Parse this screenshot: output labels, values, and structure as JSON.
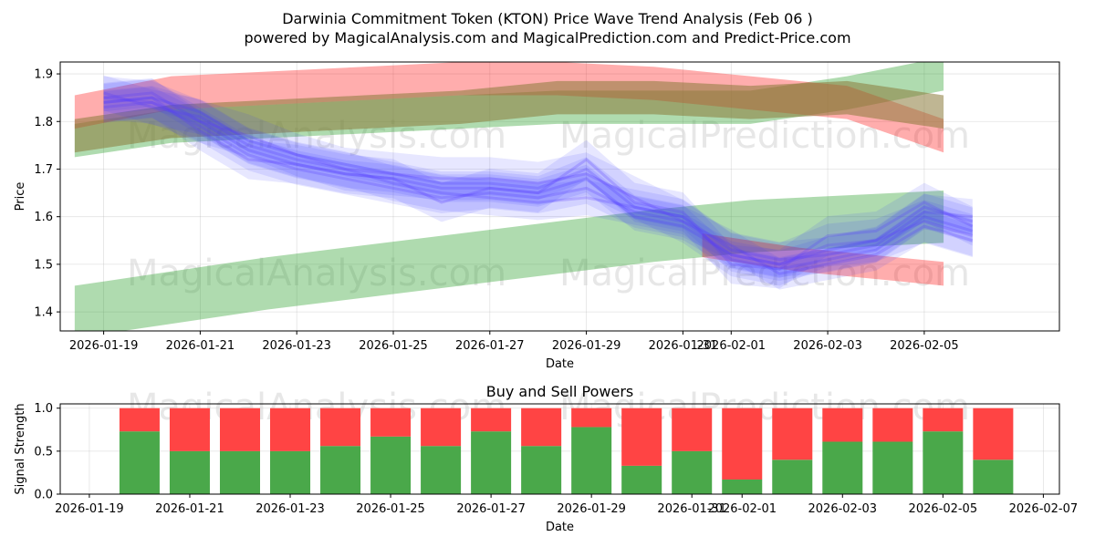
{
  "title": "Darwinia Commitment Token (KTON) Price Wave Trend Analysis (Feb 06 )",
  "subtitle": "powered by MagicalAnalysis.com and MagicalPrediction.com and Predict-Price.com",
  "watermarks": [
    "MagicalAnalysis.com",
    "MagicalPrediction.com"
  ],
  "colors": {
    "green": "#2ca02c",
    "red": "#ff0000",
    "blue": "#0000ff",
    "buy": "#4aa84a",
    "sell": "#ff4444"
  },
  "chart_data": [
    {
      "type": "line",
      "name": "price-wave",
      "title": "",
      "xlabel": "Date",
      "ylabel": "Price",
      "xlim": [
        "2026-01-18.1",
        "2026-02-07.8"
      ],
      "ylim": [
        1.36,
        1.925
      ],
      "yticks": [
        1.4,
        1.5,
        1.6,
        1.7,
        1.8,
        1.9
      ],
      "xticks": [
        "2026-01-19",
        "2026-01-21",
        "2026-01-23",
        "2026-01-25",
        "2026-01-27",
        "2026-01-29",
        "2026-01-31",
        "2026-02-01",
        "2026-02-03",
        "2026-02-05"
      ],
      "bands": [
        {
          "name": "green-upper-channel",
          "color": "green",
          "x": [
            0,
            2,
            4,
            6,
            8,
            10,
            12,
            14,
            16,
            18
          ],
          "center": [
            1.76,
            1.79,
            1.8,
            1.81,
            1.82,
            1.83,
            1.83,
            1.83,
            1.86,
            1.9
          ],
          "width": 0.07
        },
        {
          "name": "red-channel",
          "color": "red",
          "x": [
            0,
            2,
            4,
            6,
            8,
            10,
            12,
            14,
            16,
            18
          ],
          "center": [
            1.82,
            1.86,
            1.87,
            1.88,
            1.89,
            1.89,
            1.88,
            1.86,
            1.84,
            1.77
          ],
          "width": 0.07
        },
        {
          "name": "olive-band",
          "color": "olive",
          "x": [
            0,
            2,
            4,
            6,
            8,
            10,
            12,
            14,
            16,
            18
          ],
          "center": [
            1.77,
            1.8,
            1.81,
            1.82,
            1.83,
            1.85,
            1.85,
            1.84,
            1.85,
            1.82
          ],
          "width": 0.07
        },
        {
          "name": "green-lower-channel",
          "color": "green",
          "x": [
            0,
            4,
            8,
            12,
            14,
            16,
            18
          ],
          "center": [
            1.4,
            1.46,
            1.51,
            1.56,
            1.58,
            1.59,
            1.6
          ],
          "width": 0.11
        },
        {
          "name": "red-lower-tail",
          "color": "red",
          "x": [
            13,
            15,
            16,
            17,
            18
          ],
          "center": [
            1.54,
            1.51,
            1.5,
            1.49,
            1.48
          ],
          "width": 0.05
        }
      ],
      "series": [
        {
          "name": "wave-1",
          "x": [
            0,
            1,
            2,
            3,
            4,
            5,
            6,
            7,
            8,
            9,
            10,
            11,
            12,
            13,
            14,
            15,
            16,
            17,
            18
          ],
          "values": [
            1.84,
            1.85,
            1.82,
            1.76,
            1.73,
            1.71,
            1.69,
            1.67,
            1.67,
            1.66,
            1.7,
            1.62,
            1.6,
            1.51,
            1.49,
            1.51,
            1.53,
            1.6,
            1.57
          ]
        },
        {
          "name": "wave-2",
          "x": [
            0,
            1,
            2,
            3,
            4,
            5,
            6,
            7,
            8,
            9,
            10,
            11,
            12,
            13,
            14,
            15,
            16,
            17,
            18
          ],
          "values": [
            1.85,
            1.86,
            1.8,
            1.74,
            1.71,
            1.69,
            1.68,
            1.66,
            1.66,
            1.65,
            1.68,
            1.6,
            1.58,
            1.52,
            1.5,
            1.53,
            1.55,
            1.62,
            1.59
          ]
        },
        {
          "name": "wave-3",
          "x": [
            0,
            1,
            2,
            3,
            4,
            5,
            6,
            7,
            8,
            9,
            10,
            11,
            12,
            13,
            14,
            15,
            16,
            17,
            18
          ],
          "values": [
            1.83,
            1.84,
            1.79,
            1.73,
            1.7,
            1.68,
            1.66,
            1.64,
            1.65,
            1.64,
            1.66,
            1.61,
            1.59,
            1.54,
            1.48,
            1.5,
            1.52,
            1.58,
            1.55
          ]
        },
        {
          "name": "wave-4",
          "x": [
            0,
            1,
            2,
            3,
            4,
            5,
            6,
            7,
            8,
            9,
            10,
            11,
            12,
            13,
            14,
            15,
            16,
            17,
            18
          ],
          "values": [
            1.86,
            1.83,
            1.81,
            1.75,
            1.72,
            1.7,
            1.67,
            1.65,
            1.64,
            1.63,
            1.64,
            1.62,
            1.6,
            1.53,
            1.51,
            1.52,
            1.54,
            1.61,
            1.6
          ]
        },
        {
          "name": "wave-5",
          "x": [
            0,
            1,
            2,
            3,
            4,
            5,
            6,
            7,
            8,
            9,
            10,
            11,
            12,
            13,
            14,
            15,
            16,
            17,
            18
          ],
          "values": [
            1.84,
            1.85,
            1.78,
            1.72,
            1.71,
            1.69,
            1.68,
            1.63,
            1.66,
            1.65,
            1.72,
            1.63,
            1.61,
            1.5,
            1.49,
            1.56,
            1.57,
            1.63,
            1.58
          ]
        },
        {
          "name": "wave-6",
          "x": [
            0,
            1,
            2,
            3,
            4,
            5,
            6,
            7,
            8,
            9,
            10,
            11,
            12,
            13,
            14,
            15,
            16,
            17,
            18
          ],
          "values": [
            1.85,
            1.84,
            1.8,
            1.77,
            1.73,
            1.7,
            1.69,
            1.68,
            1.68,
            1.67,
            1.69,
            1.64,
            1.59,
            1.52,
            1.5,
            1.54,
            1.55,
            1.59,
            1.56
          ]
        }
      ]
    },
    {
      "type": "bar",
      "name": "buy-sell-powers",
      "title": "Buy and Sell Powers",
      "xlabel": "Date",
      "ylabel": "Signal Strength",
      "ylim": [
        0,
        1.05
      ],
      "yticks": [
        0.0,
        0.5,
        1.0
      ],
      "xticks": [
        "2026-01-19",
        "2026-01-21",
        "2026-01-23",
        "2026-01-25",
        "2026-01-27",
        "2026-01-29",
        "2026-01-31",
        "2026-02-01",
        "2026-02-03",
        "2026-02-05",
        "2026-02-07"
      ],
      "categories": [
        "2026-01-20",
        "2026-01-21",
        "2026-01-22",
        "2026-01-23",
        "2026-01-24",
        "2026-01-25",
        "2026-01-26",
        "2026-01-27",
        "2026-01-28",
        "2026-01-29",
        "2026-01-30",
        "2026-01-31",
        "2026-02-01",
        "2026-02-02",
        "2026-02-03",
        "2026-02-04",
        "2026-02-05",
        "2026-02-06"
      ],
      "series": [
        {
          "name": "Buy",
          "color": "buy",
          "values": [
            0.73,
            0.5,
            0.5,
            0.5,
            0.56,
            0.67,
            0.56,
            0.73,
            0.56,
            0.78,
            0.33,
            0.5,
            0.17,
            0.4,
            0.61,
            0.61,
            0.73,
            0.4
          ]
        },
        {
          "name": "Sell",
          "color": "sell",
          "values": [
            0.27,
            0.5,
            0.5,
            0.5,
            0.44,
            0.33,
            0.44,
            0.27,
            0.44,
            0.22,
            0.67,
            0.5,
            0.83,
            0.6,
            0.39,
            0.39,
            0.27,
            0.6
          ]
        }
      ]
    }
  ]
}
